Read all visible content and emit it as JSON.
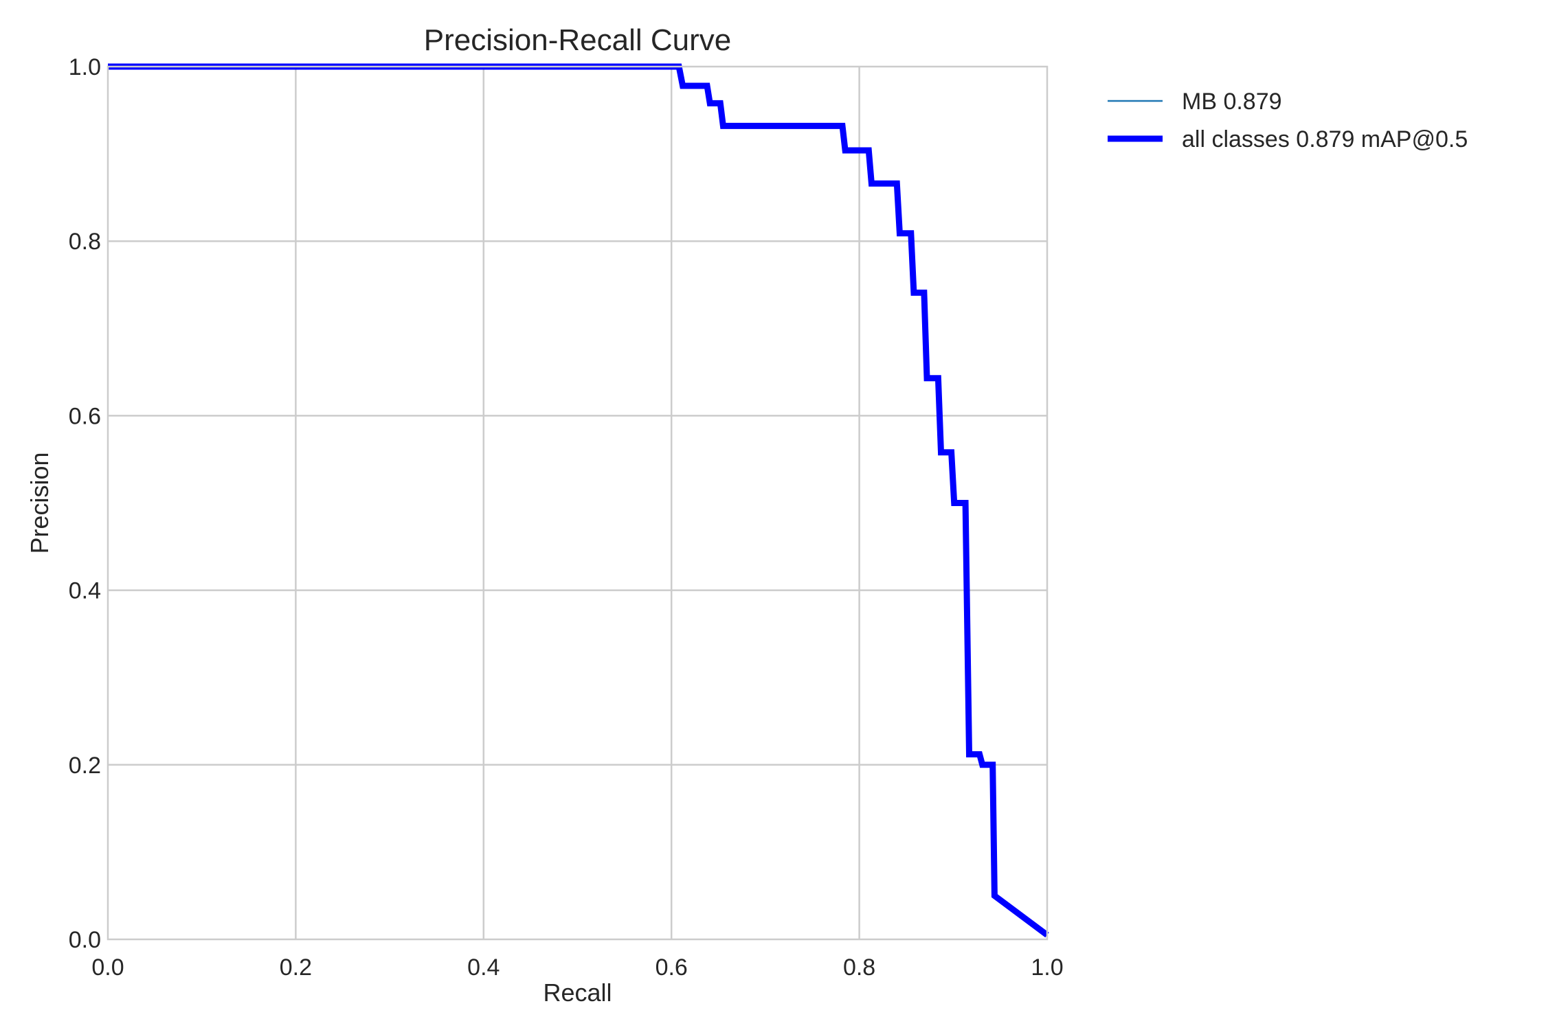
{
  "chart_data": {
    "type": "line",
    "title": "Precision-Recall Curve",
    "xlabel": "Recall",
    "ylabel": "Precision",
    "xlim": [
      0,
      1
    ],
    "ylim": [
      0,
      1
    ],
    "grid": true,
    "legend_position": "outside-top-right",
    "x_ticks": [
      "0.0",
      "0.2",
      "0.4",
      "0.6",
      "0.8",
      "1.0"
    ],
    "y_ticks": [
      "0.0",
      "0.2",
      "0.4",
      "0.6",
      "0.8",
      "1.0"
    ],
    "series": [
      {
        "name": "MB 0.879",
        "color": "#1f77b4",
        "points": [
          [
            0.0,
            1.0
          ],
          [
            0.608,
            1.0
          ],
          [
            0.612,
            0.978
          ],
          [
            0.638,
            0.978
          ],
          [
            0.641,
            0.958
          ],
          [
            0.652,
            0.958
          ],
          [
            0.655,
            0.932
          ],
          [
            0.782,
            0.932
          ],
          [
            0.785,
            0.904
          ],
          [
            0.81,
            0.904
          ],
          [
            0.813,
            0.866
          ],
          [
            0.84,
            0.866
          ],
          [
            0.843,
            0.809
          ],
          [
            0.855,
            0.809
          ],
          [
            0.858,
            0.741
          ],
          [
            0.869,
            0.741
          ],
          [
            0.872,
            0.643
          ],
          [
            0.884,
            0.643
          ],
          [
            0.887,
            0.558
          ],
          [
            0.898,
            0.558
          ],
          [
            0.901,
            0.5
          ],
          [
            0.913,
            0.5
          ],
          [
            0.917,
            0.212
          ],
          [
            0.928,
            0.212
          ],
          [
            0.931,
            0.2
          ],
          [
            0.942,
            0.2
          ],
          [
            0.944,
            0.05
          ],
          [
            1.0,
            0.005
          ]
        ]
      },
      {
        "name": "all classes 0.879 mAP@0.5",
        "color": "#0000ff",
        "points": [
          [
            0.0,
            1.0
          ],
          [
            0.608,
            1.0
          ],
          [
            0.612,
            0.978
          ],
          [
            0.638,
            0.978
          ],
          [
            0.641,
            0.958
          ],
          [
            0.652,
            0.958
          ],
          [
            0.655,
            0.932
          ],
          [
            0.782,
            0.932
          ],
          [
            0.785,
            0.904
          ],
          [
            0.81,
            0.904
          ],
          [
            0.813,
            0.866
          ],
          [
            0.84,
            0.866
          ],
          [
            0.843,
            0.809
          ],
          [
            0.855,
            0.809
          ],
          [
            0.858,
            0.741
          ],
          [
            0.869,
            0.741
          ],
          [
            0.872,
            0.643
          ],
          [
            0.884,
            0.643
          ],
          [
            0.887,
            0.558
          ],
          [
            0.898,
            0.558
          ],
          [
            0.901,
            0.5
          ],
          [
            0.913,
            0.5
          ],
          [
            0.917,
            0.212
          ],
          [
            0.928,
            0.212
          ],
          [
            0.931,
            0.2
          ],
          [
            0.942,
            0.2
          ],
          [
            0.944,
            0.05
          ],
          [
            1.0,
            0.005
          ]
        ]
      }
    ]
  }
}
